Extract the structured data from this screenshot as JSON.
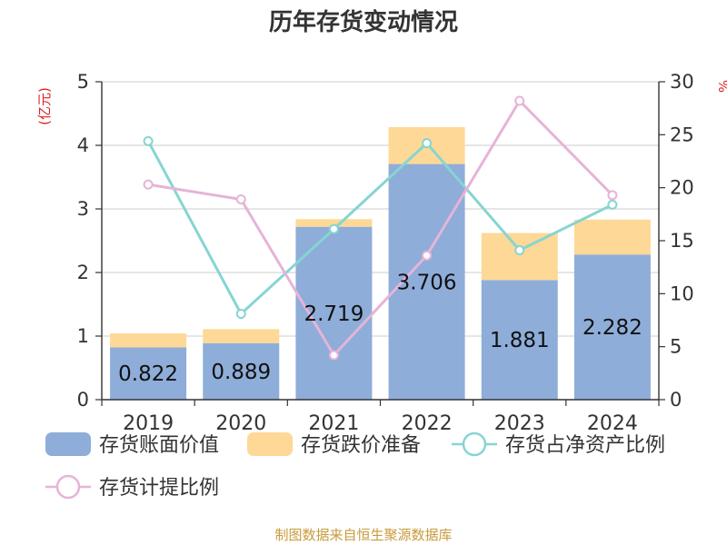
{
  "title": "历年存货变动情况",
  "source": "制图数据来自恒生聚源数据库",
  "chart_data": {
    "type": "bar",
    "categories": [
      "2019",
      "2020",
      "2021",
      "2022",
      "2023",
      "2024"
    ],
    "left_axis": {
      "unit": "(亿元)",
      "ylim": [
        0,
        5
      ],
      "ticks": [
        "0",
        "1",
        "2",
        "3",
        "4",
        "5"
      ]
    },
    "right_axis": {
      "unit": "%",
      "ylim": [
        0,
        30
      ],
      "ticks": [
        "0",
        "5",
        "10",
        "15",
        "20",
        "25",
        "30"
      ]
    },
    "stacked": true,
    "grid": true,
    "legend_position": "bottom",
    "series": [
      {
        "name": "存货账面价值",
        "kind": "bar",
        "axis": "left",
        "color": "#8eadd9",
        "values": [
          0.822,
          0.889,
          2.719,
          3.706,
          1.881,
          2.282
        ],
        "labels": [
          "0.822",
          "0.889",
          "2.719",
          "3.706",
          "1.881",
          "2.282"
        ]
      },
      {
        "name": "存货跌价准备",
        "kind": "bar",
        "axis": "left",
        "color": "#fed896",
        "values": [
          0.22,
          0.22,
          0.12,
          0.58,
          0.74,
          0.55
        ]
      },
      {
        "name": "存货占净资产比例",
        "kind": "line",
        "axis": "right",
        "color": "#86d5d2",
        "values": [
          24.4,
          8.1,
          16.1,
          24.2,
          14.1,
          18.4
        ]
      },
      {
        "name": "存货计提比例",
        "kind": "line",
        "axis": "right",
        "color": "#e6b4d8",
        "values": [
          20.3,
          18.9,
          4.2,
          13.6,
          28.2,
          19.3
        ]
      }
    ]
  }
}
